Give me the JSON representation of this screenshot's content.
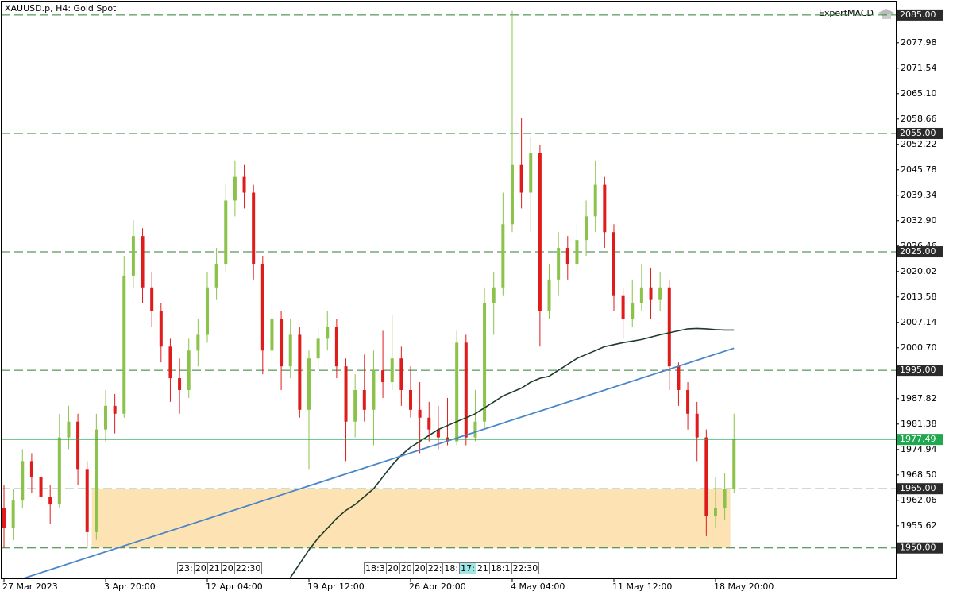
{
  "chart_data": {
    "type": "candlestick",
    "title": "XAUUSD.p, H4:  Gold Spot",
    "indicator": "ExpertMACD",
    "categories": [
      "27 Mar 2023",
      null,
      null,
      null,
      null,
      null,
      null,
      null,
      null,
      null,
      null,
      "3 Apr 20:00",
      null,
      null,
      null,
      null,
      null,
      null,
      null,
      null,
      null,
      null,
      "12 Apr 04:00",
      null,
      null,
      null,
      null,
      null,
      null,
      null,
      null,
      null,
      null,
      "19 Apr 12:00",
      null,
      null,
      null,
      null,
      null,
      null,
      null,
      null,
      null,
      null,
      "26 Apr 20:00",
      null,
      null,
      null,
      null,
      null,
      null,
      null,
      null,
      null,
      null,
      "4 May 04:00",
      null,
      null,
      null,
      null,
      null,
      null,
      null,
      null,
      null,
      null,
      "11 May 12:00",
      null,
      null,
      null,
      null,
      null,
      null,
      null,
      null,
      null,
      null,
      "18 May 20:00",
      null,
      null
    ],
    "open": [
      1960,
      1955,
      1962,
      1972,
      1968,
      1963,
      1961,
      1978,
      1982,
      1970,
      1954,
      1980,
      1986,
      1984,
      2019,
      2029,
      2016,
      2010,
      2001,
      1993,
      1990,
      2000,
      2004,
      2016,
      2022,
      2038,
      2044,
      2040,
      2022,
      2000,
      2008,
      1996,
      2004,
      1985,
      1998,
      2003,
      2006,
      1996,
      1982,
      1990,
      1985,
      1995,
      1992,
      1998,
      1990,
      1985,
      1983,
      1980,
      1978,
      1977,
      2002,
      1978,
      1982,
      2012,
      2016,
      2032,
      2047,
      2040,
      2050,
      2010,
      2018,
      2026,
      2022,
      2028,
      2034,
      2042,
      2030,
      2014,
      2008,
      2012,
      2016,
      2013,
      2016,
      1996,
      1990,
      1984,
      1978,
      1958,
      1960,
      1965
    ],
    "high": [
      1966,
      1965,
      1975,
      1974,
      1970,
      1966,
      1984,
      1986,
      1984,
      1972,
      1984,
      1990,
      1989,
      2024,
      2033,
      2031,
      2020,
      2012,
      2003,
      1998,
      2003,
      2008,
      2020,
      2026,
      2042,
      2048,
      2047,
      2042,
      2024,
      2012,
      2010,
      2008,
      2006,
      2000,
      2006,
      2010,
      2008,
      1998,
      1994,
      1999,
      2000,
      2005,
      2009,
      2001,
      1996,
      1992,
      1987,
      1986,
      1988,
      2005,
      2004,
      1990,
      2016,
      2020,
      2040,
      2086,
      2059,
      2054,
      2052,
      2022,
      2030,
      2029,
      2032,
      2038,
      2048,
      2044,
      2032,
      2016,
      2018,
      2022,
      2021,
      2020,
      2018,
      1997,
      1992,
      1987,
      1980,
      1968,
      1969,
      1984
    ],
    "low": [
      1950,
      1952,
      1960,
      1964,
      1960,
      1956,
      1960,
      1975,
      1966,
      1950,
      1952,
      1977,
      1979,
      1983,
      2016,
      2012,
      2006,
      1997,
      1987,
      1984,
      1988,
      1996,
      2002,
      2013,
      2020,
      2034,
      2036,
      2018,
      1994,
      1996,
      1990,
      1993,
      1983,
      1970,
      1995,
      2000,
      1993,
      1972,
      1978,
      1982,
      1976,
      1988,
      1990,
      1986,
      1983,
      1974,
      1977,
      1975,
      1976,
      1976,
      1976,
      1977,
      1980,
      2004,
      2014,
      2030,
      2036,
      2030,
      2001,
      2008,
      2014,
      2018,
      2020,
      2024,
      2030,
      2026,
      2010,
      2003,
      2006,
      2010,
      2008,
      2010,
      1990,
      1986,
      1980,
      1972,
      1953,
      1955,
      1957,
      1964
    ],
    "close": [
      1955,
      1962,
      1972,
      1968,
      1963,
      1961,
      1978,
      1982,
      1970,
      1954,
      1980,
      1986,
      1984,
      2019,
      2029,
      2016,
      2010,
      2001,
      1993,
      1990,
      2000,
      2004,
      2016,
      2022,
      2038,
      2044,
      2040,
      2022,
      2000,
      2008,
      1996,
      2004,
      1985,
      1998,
      2003,
      2006,
      1996,
      1982,
      1990,
      1985,
      1995,
      1992,
      1998,
      1990,
      1985,
      1983,
      1980,
      1978,
      1977,
      2002,
      1978,
      1982,
      2012,
      2016,
      2032,
      2047,
      2040,
      2050,
      2010,
      2018,
      2026,
      2022,
      2028,
      2034,
      2042,
      2030,
      2014,
      2008,
      2012,
      2016,
      2013,
      2016,
      1996,
      1990,
      1984,
      1978,
      1958,
      1960,
      1965,
      1977.49
    ],
    "up_color": "#8bc34a",
    "down_color": "#e01b1b",
    "ylim": [
      1942.3,
      2088.4
    ],
    "yticks": [
      2077.98,
      2071.54,
      {
        "value": 2065.1,
        "label": "2065.10"
      },
      2058.66,
      2052.22,
      2045.78,
      2039.34,
      {
        "value": 2032.9,
        "label": "2032.90"
      },
      2026.46,
      2020.02,
      2013.58,
      2007.14,
      {
        "value": 2000.7,
        "label": "2000.70"
      },
      1987.82,
      1981.38,
      1974.94,
      {
        "value": 1968.5,
        "label": "1968.50"
      },
      1962.06,
      1955.62
    ],
    "levels": [
      {
        "value": 2085,
        "label": "2085.00"
      },
      {
        "value": 2055,
        "label": "2055.00"
      },
      {
        "value": 2025,
        "label": "2025.00"
      },
      {
        "value": 1995,
        "label": "1995.00"
      },
      {
        "value": 1965,
        "label": "1965.00"
      },
      {
        "value": 1950,
        "label": "1950.00"
      }
    ],
    "level_color": "#2e7d32",
    "current_price": 1977.49,
    "current_price_color": "#1fa84f",
    "moving_average": {
      "color": "#1d3b2a",
      "values": [
        null,
        null,
        null,
        null,
        null,
        null,
        null,
        null,
        null,
        null,
        null,
        null,
        null,
        null,
        null,
        null,
        null,
        null,
        null,
        null,
        null,
        null,
        null,
        null,
        null,
        null,
        null,
        null,
        null,
        null,
        null,
        1942.5,
        1946,
        1949.5,
        1952.5,
        1955,
        1957.5,
        1959.5,
        1961,
        1963,
        1965,
        1968,
        1971,
        1973.5,
        1975.5,
        1977,
        1978.5,
        1980,
        1981,
        1982,
        1983,
        1984,
        1985.5,
        1987,
        1988.5,
        1989.5,
        1990.5,
        1992,
        1993,
        1993.5,
        1995,
        1996.5,
        1998,
        1999,
        2000,
        2001,
        2001.5,
        2002,
        2002.4,
        2002.8,
        2003.4,
        2004,
        2004.5,
        2005,
        2005.5,
        2005.6,
        2005.5,
        2005.3,
        2005.2,
        2005.2
      ]
    },
    "trendline": {
      "color": "#4a86c8",
      "x": [
        2,
        79
      ],
      "values": [
        1942.2,
        2000.6
      ]
    },
    "zone": {
      "color": "#fde3b4",
      "x": [
        9.5,
        78.6
      ],
      "values": [
        1950,
        1965
      ]
    },
    "time_markers": [
      [
        "23:",
        "20",
        "21",
        "20",
        "22:30"
      ],
      [
        "18:3",
        "20",
        "20",
        "20",
        "22:",
        "18:",
        "17:",
        "21",
        "18:1",
        "22:30"
      ]
    ]
  }
}
